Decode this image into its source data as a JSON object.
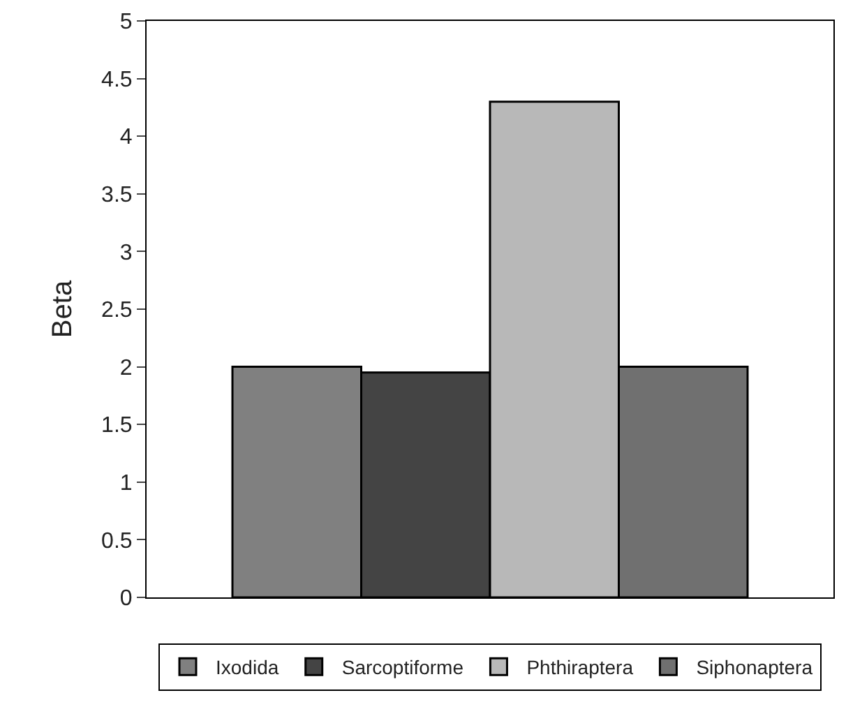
{
  "chart_data": {
    "type": "bar",
    "ylabel": "Beta",
    "categories": [
      null
    ],
    "series": [
      {
        "name": "Ixodida",
        "color": "#808080",
        "values": [
          2.0
        ]
      },
      {
        "name": "Sarcoptiforme",
        "color": "#444444",
        "values": [
          1.95
        ]
      },
      {
        "name": "Phthiraptera",
        "color": "#b8b8b8",
        "values": [
          4.3
        ]
      },
      {
        "name": "Siphonaptera",
        "color": "#707070",
        "values": [
          2.0
        ]
      }
    ],
    "ylim": [
      0,
      5
    ],
    "yticks": [
      0,
      0.5,
      1,
      1.5,
      2,
      2.5,
      3,
      3.5,
      4,
      4.5,
      5
    ],
    "legend": "bottom"
  }
}
